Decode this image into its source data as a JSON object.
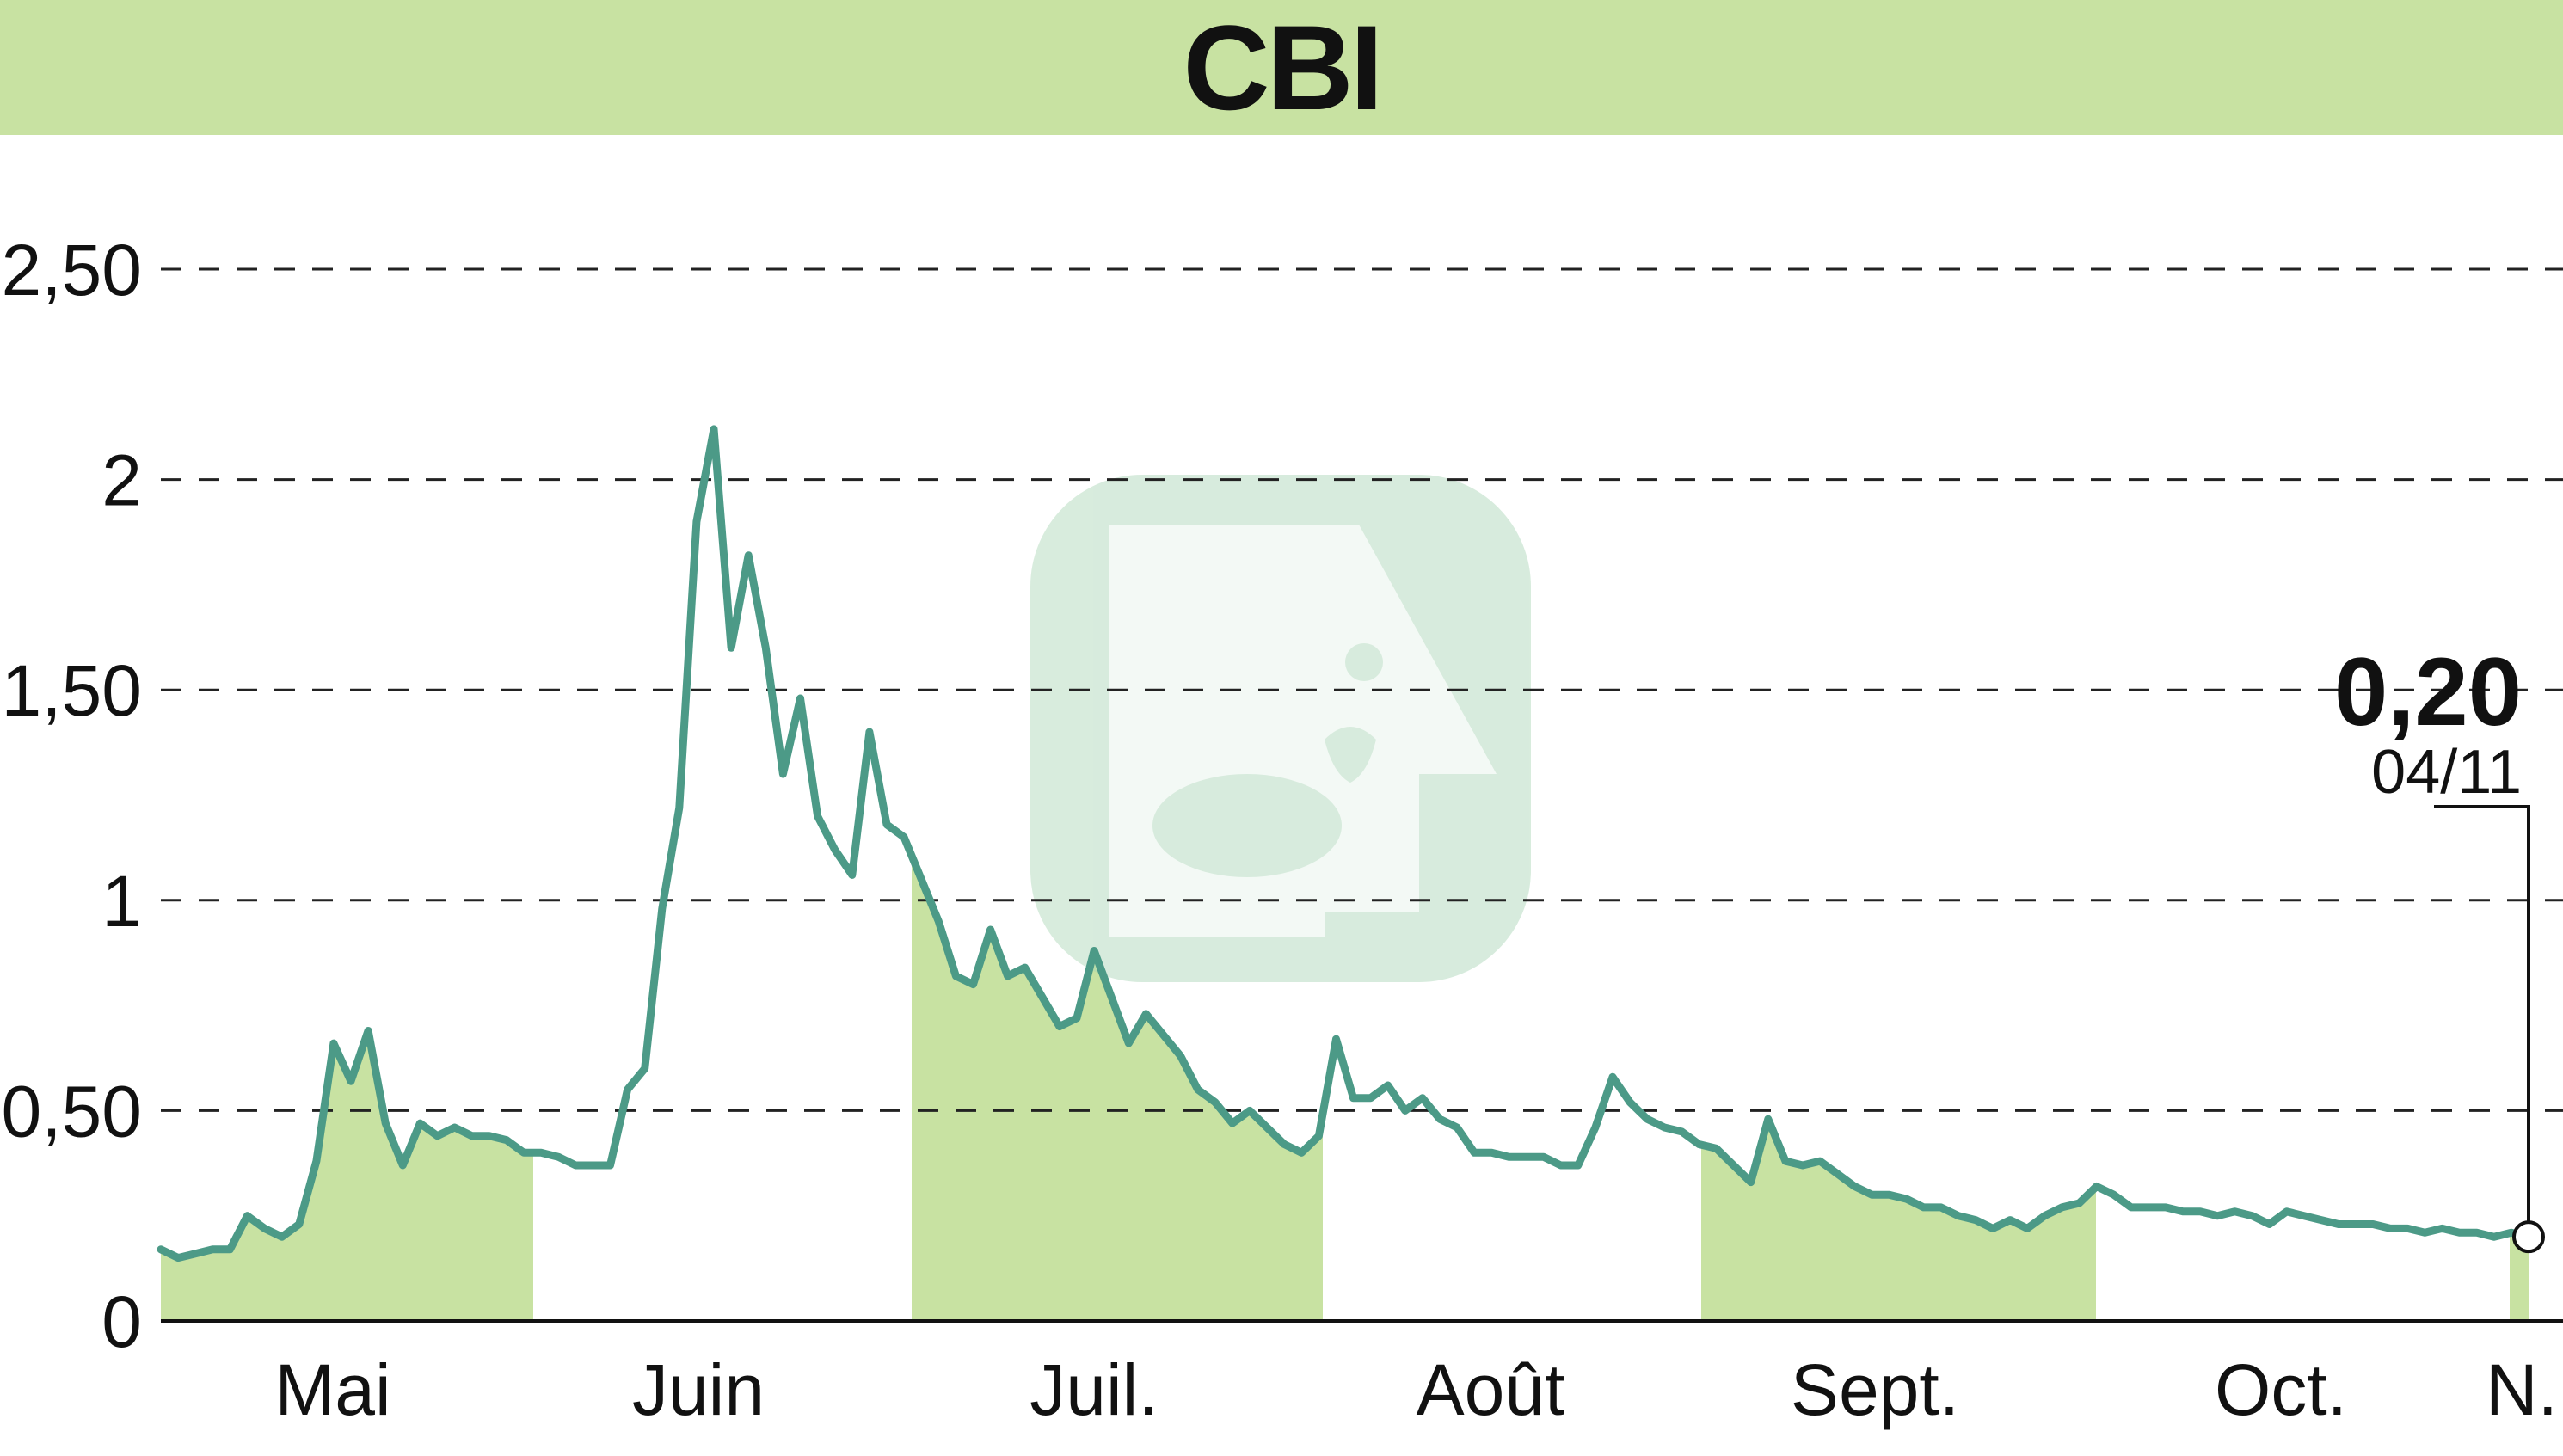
{
  "title": "CBI",
  "colors": {
    "line": "#4c9a87",
    "fill": "#c8e2a2",
    "banner": "#c8e2a2",
    "grid": "#222222",
    "watermark": "#a8d5b4"
  },
  "watermark_icon": "bull-logo-icon",
  "chart_data": {
    "type": "area",
    "title": "CBI",
    "xlabel": "",
    "ylabel": "",
    "ylim": [
      0,
      2.6
    ],
    "grid": true,
    "y_ticks": [
      {
        "value": 0,
        "label": "0"
      },
      {
        "value": 0.5,
        "label": "0,50"
      },
      {
        "value": 1,
        "label": "1"
      },
      {
        "value": 1.5,
        "label": "1,50"
      },
      {
        "value": 2,
        "label": "2"
      },
      {
        "value": 2.5,
        "label": "2,50"
      }
    ],
    "x_ticks": [
      "Mai",
      "Juin",
      "Juil.",
      "Août",
      "Sept.",
      "Oct.",
      "N."
    ],
    "shaded_months": [
      "Mai",
      "Juil.",
      "Sept.",
      "N."
    ],
    "last_value": {
      "value": "0,20",
      "date": "04/11"
    },
    "values": [
      0.17,
      0.15,
      0.16,
      0.17,
      0.17,
      0.25,
      0.22,
      0.2,
      0.23,
      0.38,
      0.66,
      0.57,
      0.69,
      0.47,
      0.37,
      0.47,
      0.44,
      0.46,
      0.44,
      0.44,
      0.43,
      0.4,
      0.4,
      0.39,
      0.37,
      0.37,
      0.37,
      0.55,
      0.6,
      0.98,
      1.22,
      1.9,
      2.12,
      1.6,
      1.82,
      1.6,
      1.3,
      1.48,
      1.2,
      1.12,
      1.06,
      1.4,
      1.18,
      1.15,
      1.05,
      0.95,
      0.82,
      0.8,
      0.93,
      0.82,
      0.84,
      0.77,
      0.7,
      0.72,
      0.88,
      0.77,
      0.66,
      0.73,
      0.68,
      0.63,
      0.55,
      0.52,
      0.47,
      0.5,
      0.46,
      0.42,
      0.4,
      0.44,
      0.67,
      0.53,
      0.53,
      0.56,
      0.5,
      0.53,
      0.48,
      0.46,
      0.4,
      0.4,
      0.39,
      0.39,
      0.39,
      0.37,
      0.37,
      0.46,
      0.58,
      0.52,
      0.48,
      0.46,
      0.45,
      0.42,
      0.41,
      0.37,
      0.33,
      0.48,
      0.38,
      0.37,
      0.38,
      0.35,
      0.32,
      0.3,
      0.3,
      0.29,
      0.27,
      0.27,
      0.25,
      0.24,
      0.22,
      0.24,
      0.22,
      0.25,
      0.27,
      0.28,
      0.32,
      0.3,
      0.27,
      0.27,
      0.27,
      0.26,
      0.26,
      0.25,
      0.26,
      0.25,
      0.23,
      0.26,
      0.25,
      0.24,
      0.23,
      0.23,
      0.23,
      0.22,
      0.22,
      0.21,
      0.22,
      0.21,
      0.21,
      0.2,
      0.21,
      0.2
    ]
  }
}
